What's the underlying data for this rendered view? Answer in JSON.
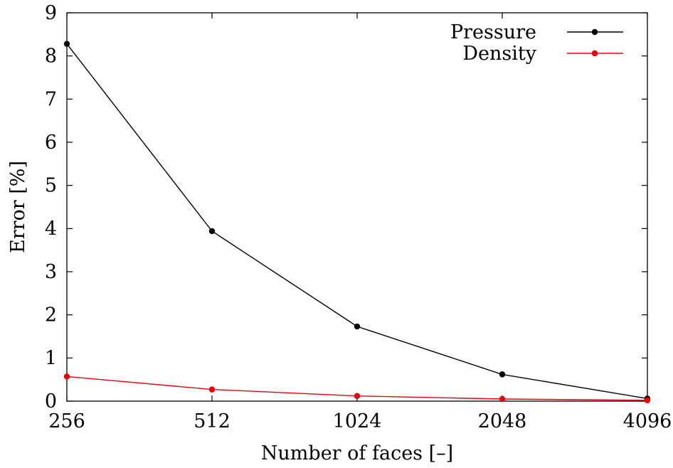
{
  "chart_data": {
    "type": "line",
    "title": "",
    "xlabel": "Number of faces [–]",
    "ylabel": "Error [%]",
    "x_scale": "log2",
    "x": [
      256,
      512,
      1024,
      2048,
      4096
    ],
    "x_tick_labels": [
      "256",
      "512",
      "1024",
      "2048",
      "4096"
    ],
    "xlim": [
      256,
      4096
    ],
    "ylim": [
      0,
      9
    ],
    "y_ticks": [
      0,
      1,
      2,
      3,
      4,
      5,
      6,
      7,
      8,
      9
    ],
    "grid": false,
    "legend_position": "top-right",
    "series": [
      {
        "name": "Pressure",
        "color": "#000000",
        "marker": "filled-circle",
        "values": [
          8.28,
          3.94,
          1.73,
          0.62,
          0.06
        ]
      },
      {
        "name": "Density",
        "color": "#e8000b",
        "marker": "filled-circle",
        "values": [
          0.57,
          0.27,
          0.12,
          0.05,
          0.02
        ]
      }
    ]
  }
}
